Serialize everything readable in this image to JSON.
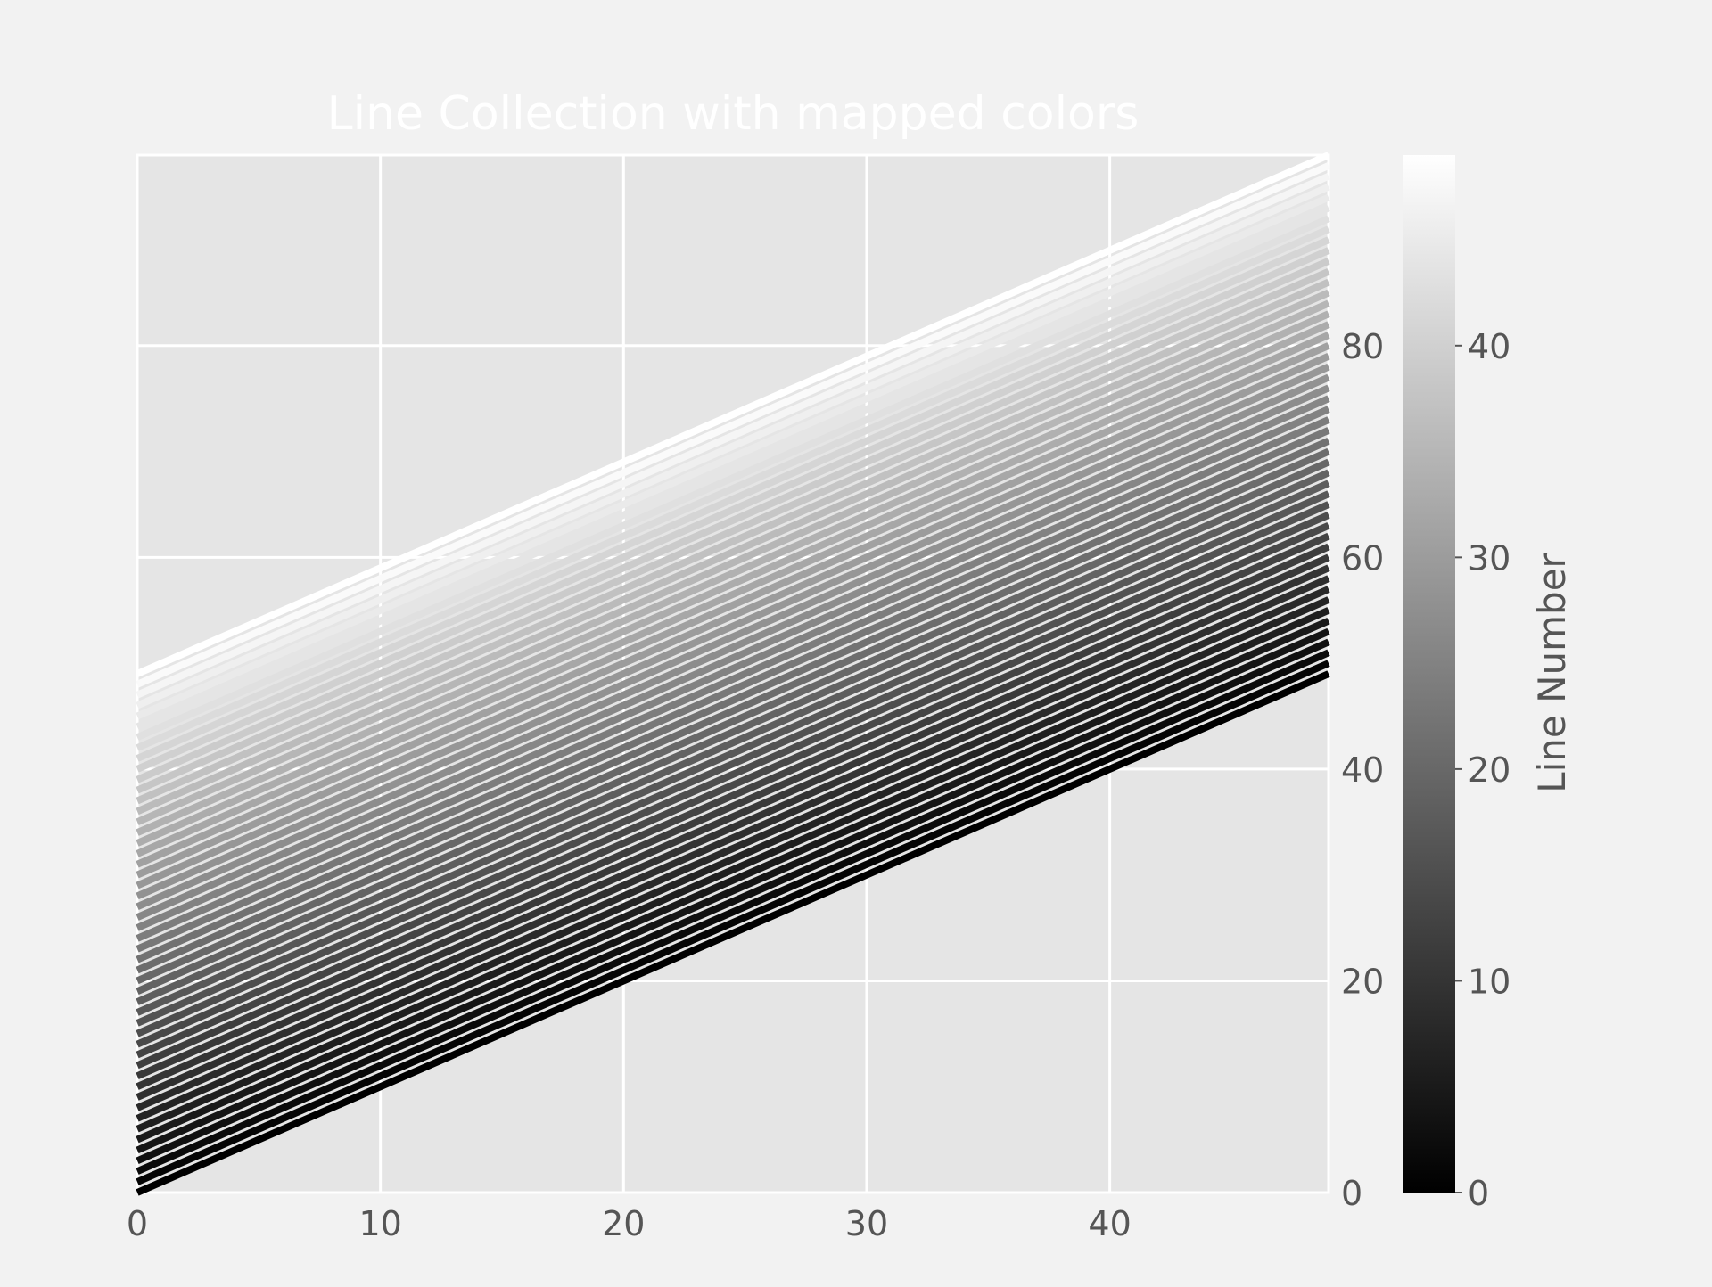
{
  "colors": {
    "figure_background": "#f2f2f2",
    "axes_background": "#e5e5e5",
    "grid": "#ffffff",
    "title_text": "#ffffff",
    "tick_text": "#555555"
  },
  "chart_data": {
    "type": "line",
    "title": "Line Collection with mapped colors",
    "xlabel": "",
    "ylabel": "",
    "xlim": [
      0,
      49
    ],
    "ylim": [
      0,
      98
    ],
    "x_ticks": [
      "0",
      "10",
      "20",
      "30",
      "40"
    ],
    "y_ticks": [
      "0",
      "20",
      "40",
      "60",
      "80"
    ],
    "y_axis_side": "right",
    "grid": true,
    "x": [
      0,
      49
    ],
    "line_count": 50,
    "line_description": "y = x + offset, offset = 0..49 in steps of 1",
    "series_offsets": [
      0,
      1,
      2,
      3,
      4,
      5,
      6,
      7,
      8,
      9,
      10,
      11,
      12,
      13,
      14,
      15,
      16,
      17,
      18,
      19,
      20,
      21,
      22,
      23,
      24,
      25,
      26,
      27,
      28,
      29,
      30,
      31,
      32,
      33,
      34,
      35,
      36,
      37,
      38,
      39,
      40,
      41,
      42,
      43,
      44,
      45,
      46,
      47,
      48,
      49
    ],
    "colormap": "gray",
    "colorbar": {
      "label": "Line Number",
      "range": [
        0,
        49
      ],
      "ticks": [
        "0",
        "10",
        "20",
        "30",
        "40"
      ]
    }
  }
}
